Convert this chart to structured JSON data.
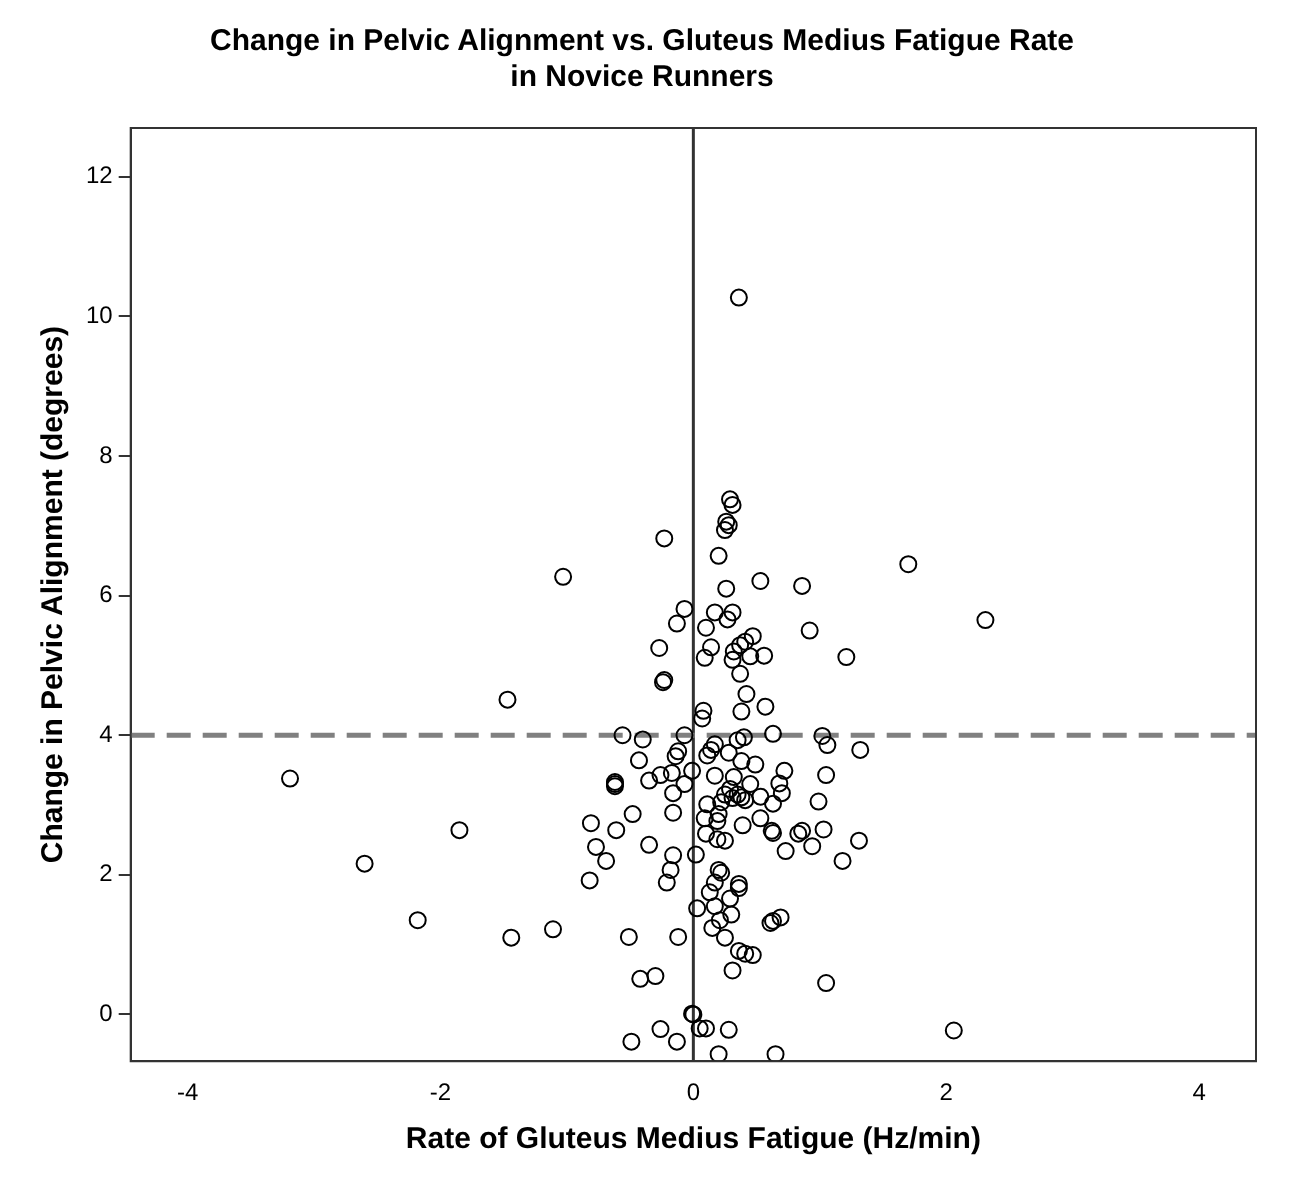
{
  "chart_data": {
    "type": "scatter",
    "title": "Change in Pelvic Alignment vs. Gluteus Medius Fatigue Rate\nin Novice Runners",
    "xlabel": "Rate of Gluteus Medius Fatigue (Hz/min)",
    "ylabel": "Change in Pelvic Alignment (degrees)",
    "x": [
      0.36,
      0.29,
      0.31,
      0.26,
      0.25,
      0.28,
      -0.23,
      0.2,
      -1.03,
      1.7,
      0.53,
      0.86,
      0.26,
      2.31,
      -0.07,
      0.17,
      0.31,
      -0.13,
      0.27,
      0.1,
      0.92,
      0.47,
      0.41,
      0.37,
      0.14,
      -0.27,
      0.32,
      0.31,
      0.09,
      0.56,
      0.45,
      1.21,
      0.37,
      -0.23,
      -0.24,
      0.42,
      -1.47,
      0.57,
      0.08,
      0.07,
      0.38,
      -0.56,
      -0.4,
      -0.07,
      0.63,
      1.02,
      1.06,
      1.32,
      0.35,
      0.4,
      0.17,
      0.14,
      -0.12,
      -0.14,
      0.28,
      0.11,
      -0.43,
      0.38,
      0.49,
      -3.19,
      0.72,
      -0.01,
      -0.17,
      -0.26,
      -0.35,
      0.17,
      1.05,
      -0.62,
      -0.62,
      -0.62,
      0.32,
      -0.07,
      0.45,
      0.68,
      0.29,
      0.25,
      0.31,
      0.35,
      -0.16,
      0.7,
      0.53,
      0.41,
      0.38,
      0.22,
      0.11,
      0.63,
      0.99,
      -0.16,
      -0.48,
      0.2,
      0.19,
      0.53,
      0.09,
      -0.81,
      0.39,
      -0.61,
      -1.85,
      0.62,
      0.63,
      0.86,
      0.83,
      1.03,
      0.1,
      0.19,
      0.25,
      1.31,
      -0.77,
      -0.35,
      0.94,
      0.73,
      -0.16,
      0.02,
      -0.69,
      1.18,
      -2.6,
      -0.18,
      0.2,
      0.22,
      -0.82,
      -0.21,
      0.17,
      0.36,
      0.36,
      0.13,
      0.29,
      0.03,
      0.17,
      -2.18,
      0.21,
      0.3,
      0.61,
      0.63,
      0.69,
      -1.11,
      0.15,
      -1.44,
      -0.51,
      -0.12,
      0.25,
      0.36,
      0.41,
      0.47,
      0.31,
      -0.42,
      -0.3,
      1.05,
      -0.01,
      0.0,
      -0.26,
      0.05,
      0.1,
      0.28,
      2.06,
      -0.49,
      -0.13,
      0.2,
      0.65
    ],
    "values": [
      10.27,
      7.38,
      7.3,
      7.06,
      6.94,
      7.01,
      6.82,
      6.57,
      6.27,
      6.45,
      6.21,
      6.14,
      6.1,
      5.65,
      5.81,
      5.76,
      5.76,
      5.6,
      5.66,
      5.54,
      5.5,
      5.42,
      5.34,
      5.29,
      5.26,
      5.25,
      5.2,
      5.08,
      5.11,
      5.14,
      5.13,
      5.12,
      4.88,
      4.79,
      4.76,
      4.59,
      4.51,
      4.41,
      4.35,
      4.24,
      4.34,
      4.0,
      3.94,
      4.0,
      4.02,
      3.99,
      3.86,
      3.79,
      3.93,
      3.97,
      3.87,
      3.79,
      3.77,
      3.7,
      3.75,
      3.71,
      3.64,
      3.63,
      3.58,
      3.38,
      3.49,
      3.49,
      3.46,
      3.43,
      3.35,
      3.42,
      3.43,
      3.33,
      3.27,
      3.3,
      3.4,
      3.3,
      3.3,
      3.31,
      3.23,
      3.15,
      3.1,
      3.15,
      3.17,
      3.17,
      3.12,
      3.07,
      3.11,
      3.04,
      3.01,
      3.02,
      3.05,
      2.89,
      2.87,
      2.87,
      2.77,
      2.81,
      2.81,
      2.74,
      2.71,
      2.64,
      2.64,
      2.63,
      2.6,
      2.63,
      2.59,
      2.65,
      2.59,
      2.51,
      2.49,
      2.49,
      2.4,
      2.43,
      2.41,
      2.34,
      2.28,
      2.29,
      2.2,
      2.2,
      2.16,
      2.07,
      2.07,
      2.03,
      1.92,
      1.89,
      1.89,
      1.87,
      1.81,
      1.75,
      1.66,
      1.52,
      1.55,
      1.35,
      1.35,
      1.43,
      1.31,
      1.34,
      1.39,
      1.22,
      1.24,
      1.1,
      1.11,
      1.11,
      1.1,
      0.91,
      0.87,
      0.85,
      0.63,
      0.51,
      0.55,
      0.45,
      0.01,
      0.0,
      -0.21,
      -0.2,
      -0.2,
      -0.22,
      -0.23,
      -0.39,
      -0.39,
      -0.57,
      -0.57
    ],
    "color": "#000000",
    "marker": "circle",
    "xlim": [
      -4.45,
      4.45
    ],
    "xticks": [
      -4,
      -2,
      0,
      2,
      4
    ],
    "ylim": [
      -0.67,
      12.7
    ],
    "yticks": [
      0,
      2,
      4,
      6,
      8,
      10,
      12
    ],
    "grid": false,
    "legend": false,
    "ref_lines": [
      {
        "axis": "x",
        "value": 0,
        "color": "#333333",
        "line_style": "solid"
      },
      {
        "axis": "y",
        "value": 4,
        "color": "#808080",
        "line_style": "dashed"
      }
    ]
  }
}
